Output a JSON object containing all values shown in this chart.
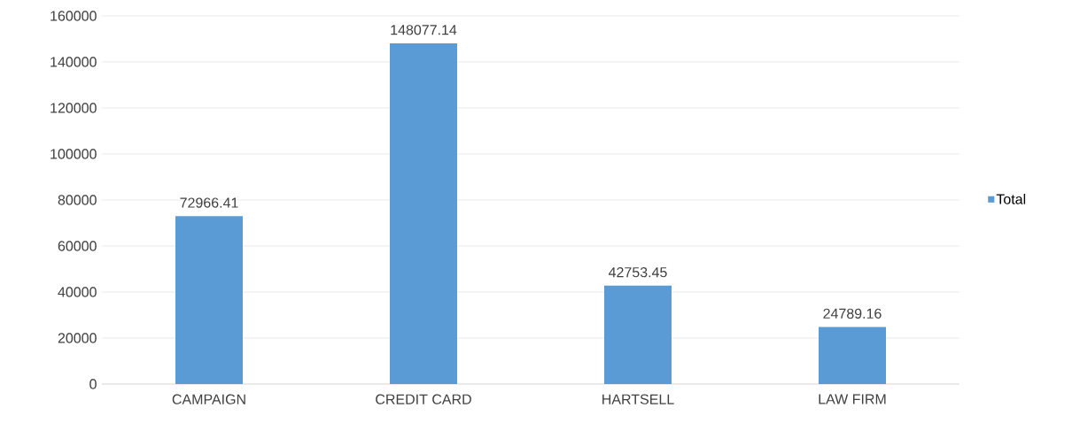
{
  "chart_data": {
    "type": "bar",
    "categories": [
      "CAMPAIGN",
      "CREDIT CARD",
      "HARTSELL",
      "LAW FIRM"
    ],
    "series": [
      {
        "name": "Total",
        "color": "#5b9bd5",
        "values": [
          72966.41,
          148077.14,
          42753.45,
          24789.16
        ]
      }
    ],
    "ylim": [
      0,
      160000
    ],
    "yticks": [
      0,
      20000,
      40000,
      60000,
      80000,
      100000,
      120000,
      140000,
      160000
    ],
    "grid": "y",
    "legend": "right",
    "data_labels": true
  }
}
